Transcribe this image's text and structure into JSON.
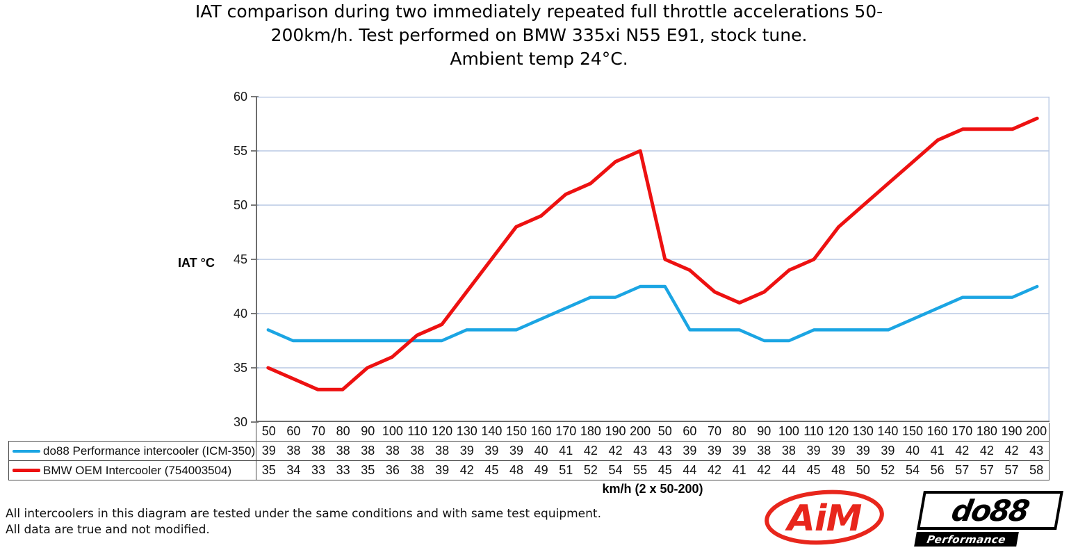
{
  "title_lines": [
    "IAT comparison during two immediately repeated full throttle accelerations 50-",
    "200km/h. Test performed on BMW 335xi N55 E91, stock tune.",
    "Ambient temp 24°C."
  ],
  "chart_data": {
    "type": "line",
    "title": "IAT comparison during two immediately repeated full throttle accelerations 50-200km/h. Test performed on BMW 335xi N55 E91, stock tune. Ambient temp 24°C.",
    "ylabel": "IAT °C",
    "xlabel": "km/h (2 x 50-200)",
    "ylim": [
      30,
      60
    ],
    "yticks": [
      30,
      35,
      40,
      45,
      50,
      55,
      60
    ],
    "grid": true,
    "grid_color": "#b9c9e4",
    "axis_color": "#6e6e6e",
    "legend_position": "bottom-table-left",
    "categories": [
      "50",
      "60",
      "70",
      "80",
      "90",
      "100",
      "110",
      "120",
      "130",
      "140",
      "150",
      "160",
      "170",
      "180",
      "190",
      "200",
      "50",
      "60",
      "70",
      "80",
      "90",
      "100",
      "110",
      "120",
      "130",
      "140",
      "150",
      "160",
      "170",
      "180",
      "190",
      "200"
    ],
    "series": [
      {
        "name": "do88 Performance intercooler (ICM-350)",
        "color": "#1ba5e3",
        "values": [
          39,
          38,
          38,
          38,
          38,
          38,
          38,
          38,
          39,
          39,
          39,
          40,
          41,
          42,
          42,
          43,
          43,
          39,
          39,
          39,
          38,
          38,
          39,
          39,
          39,
          39,
          40,
          41,
          42,
          42,
          42,
          43
        ],
        "plotted_values": [
          38.5,
          37.5,
          37.5,
          37.5,
          37.5,
          37.5,
          37.5,
          37.5,
          38.5,
          38.5,
          38.5,
          39.5,
          40.5,
          41.5,
          41.5,
          42.5,
          42.5,
          38.5,
          38.5,
          38.5,
          37.5,
          37.5,
          38.5,
          38.5,
          38.5,
          38.5,
          39.5,
          40.5,
          41.5,
          41.5,
          41.5,
          42.5
        ]
      },
      {
        "name": "BMW OEM Intercooler (754003504)",
        "color": "#ed1111",
        "values": [
          35,
          34,
          33,
          33,
          35,
          36,
          38,
          39,
          42,
          45,
          48,
          49,
          51,
          52,
          54,
          55,
          45,
          44,
          42,
          41,
          42,
          44,
          45,
          48,
          50,
          52,
          54,
          56,
          57,
          57,
          57,
          58
        ]
      }
    ]
  },
  "footer_lines": [
    "All intercoolers in this diagram are tested under the same conditions and with same test equipment.",
    "All data are true and not modified."
  ],
  "logos": {
    "aim_text": "AiM",
    "aim_color": "#e8261c",
    "do88_text": "do88",
    "do88_subtext": "Performance"
  }
}
